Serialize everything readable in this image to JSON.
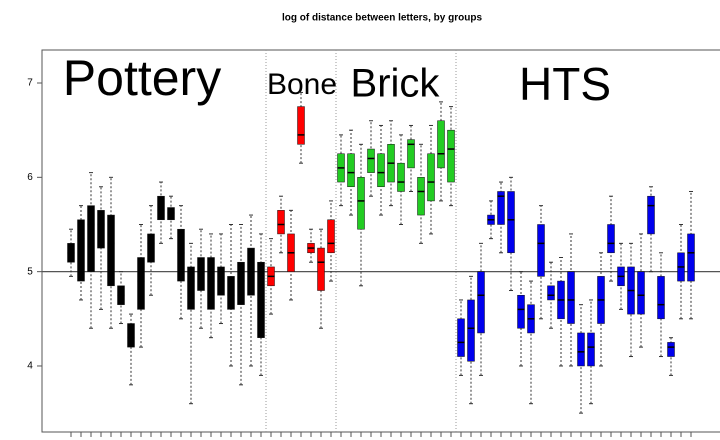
{
  "chart_data": {
    "type": "box",
    "title": "log of distance between letters, by groups",
    "ylim": [
      3.3,
      7.35
    ],
    "yticks": [
      4,
      5,
      6,
      7
    ],
    "hline": 5,
    "series": [
      {
        "name": "Pottery",
        "color": "#000000",
        "boxes": [
          [
            4.95,
            5.1,
            5.2,
            5.3,
            5.45
          ],
          [
            4.7,
            4.9,
            5.35,
            5.55,
            5.7
          ],
          [
            4.4,
            5.0,
            5.5,
            5.7,
            6.05
          ],
          [
            4.6,
            5.25,
            5.5,
            5.65,
            5.9
          ],
          [
            4.4,
            4.85,
            5.3,
            5.6,
            6.0
          ],
          [
            4.45,
            4.65,
            4.75,
            4.85,
            5.0
          ],
          [
            3.8,
            4.2,
            4.3,
            4.45,
            4.55
          ],
          [
            4.2,
            4.6,
            4.9,
            5.15,
            5.5
          ],
          [
            4.75,
            5.1,
            5.3,
            5.4,
            5.7
          ],
          [
            5.3,
            5.55,
            5.65,
            5.8,
            5.95
          ],
          [
            5.35,
            5.55,
            5.62,
            5.68,
            5.8
          ],
          [
            4.5,
            4.9,
            5.2,
            5.45,
            5.7
          ],
          [
            3.6,
            4.6,
            4.9,
            5.05,
            5.3
          ],
          [
            4.4,
            4.8,
            5.0,
            5.15,
            5.45
          ],
          [
            4.3,
            4.6,
            4.9,
            5.15,
            5.4
          ],
          [
            4.45,
            4.75,
            4.9,
            5.05,
            5.4
          ],
          [
            4.0,
            4.6,
            4.75,
            4.95,
            5.5
          ],
          [
            3.8,
            4.65,
            4.9,
            5.1,
            5.5
          ],
          [
            4.0,
            4.75,
            5.0,
            5.25,
            5.6
          ],
          [
            3.9,
            4.3,
            4.7,
            5.1,
            5.4
          ]
        ]
      },
      {
        "name": "Bone",
        "color": "#ff0000",
        "boxes": [
          [
            4.55,
            4.85,
            4.95,
            5.05,
            5.35
          ],
          [
            5.2,
            5.4,
            5.5,
            5.65,
            5.8
          ],
          [
            4.7,
            5.0,
            5.2,
            5.4,
            5.65
          ],
          [
            6.15,
            6.35,
            6.45,
            6.75,
            6.9
          ],
          [
            5.1,
            5.2,
            5.25,
            5.3,
            5.45
          ],
          [
            4.4,
            4.8,
            5.1,
            5.25,
            5.45
          ],
          [
            4.9,
            5.2,
            5.3,
            5.55,
            5.75
          ]
        ]
      },
      {
        "name": "Brick",
        "color": "#22cc22",
        "boxes": [
          [
            5.7,
            5.95,
            6.1,
            6.25,
            6.45
          ],
          [
            5.6,
            5.9,
            6.05,
            6.25,
            6.5
          ],
          [
            4.85,
            5.45,
            5.75,
            6.0,
            6.35
          ],
          [
            5.8,
            6.05,
            6.2,
            6.3,
            6.6
          ],
          [
            5.6,
            5.9,
            6.05,
            6.25,
            6.55
          ],
          [
            5.7,
            5.95,
            6.15,
            6.35,
            6.6
          ],
          [
            5.5,
            5.85,
            5.95,
            6.15,
            6.45
          ],
          [
            5.85,
            6.1,
            6.35,
            6.4,
            6.55
          ],
          [
            5.3,
            5.6,
            5.85,
            6.0,
            6.35
          ],
          [
            5.4,
            5.75,
            5.95,
            6.25,
            6.55
          ],
          [
            5.75,
            6.1,
            6.25,
            6.6,
            6.8
          ],
          [
            5.7,
            5.95,
            6.3,
            6.5,
            6.75
          ]
        ]
      },
      {
        "name": "HTS",
        "color": "#0000ee",
        "boxes": [
          [
            3.9,
            4.1,
            4.25,
            4.5,
            4.7
          ],
          [
            3.6,
            4.05,
            4.4,
            4.7,
            4.95
          ],
          [
            3.9,
            4.35,
            4.75,
            5.0,
            5.3
          ],
          [
            5.35,
            5.5,
            5.55,
            5.6,
            5.75
          ],
          [
            5.2,
            5.5,
            5.8,
            5.85,
            5.95
          ],
          [
            4.8,
            5.2,
            5.55,
            5.85,
            6.0
          ],
          [
            4.0,
            4.4,
            4.6,
            4.75,
            5.0
          ],
          [
            3.6,
            4.35,
            4.5,
            4.65,
            4.9
          ],
          [
            4.5,
            4.95,
            5.3,
            5.5,
            5.7
          ],
          [
            4.4,
            4.7,
            4.75,
            4.85,
            5.1
          ],
          [
            4.0,
            4.5,
            4.7,
            4.9,
            5.15
          ],
          [
            4.0,
            4.45,
            4.7,
            5.0,
            5.4
          ],
          [
            3.5,
            4.0,
            4.15,
            4.35,
            4.65
          ],
          [
            3.6,
            4.0,
            4.2,
            4.35,
            4.7
          ],
          [
            4.0,
            4.45,
            4.7,
            4.95,
            5.2
          ],
          [
            4.9,
            5.2,
            5.3,
            5.5,
            5.8
          ],
          [
            4.6,
            4.85,
            4.95,
            5.05,
            5.3
          ],
          [
            4.1,
            4.55,
            4.8,
            5.05,
            5.3
          ],
          [
            4.2,
            4.55,
            4.75,
            5.0,
            5.4
          ],
          [
            5.0,
            5.4,
            5.7,
            5.8,
            5.9
          ],
          [
            4.1,
            4.5,
            4.65,
            4.95,
            5.2
          ],
          [
            3.9,
            4.1,
            4.2,
            4.25,
            4.3
          ],
          [
            4.5,
            4.9,
            5.05,
            5.2,
            5.5
          ],
          [
            4.5,
            4.9,
            5.2,
            5.4,
            5.85
          ]
        ]
      }
    ]
  }
}
